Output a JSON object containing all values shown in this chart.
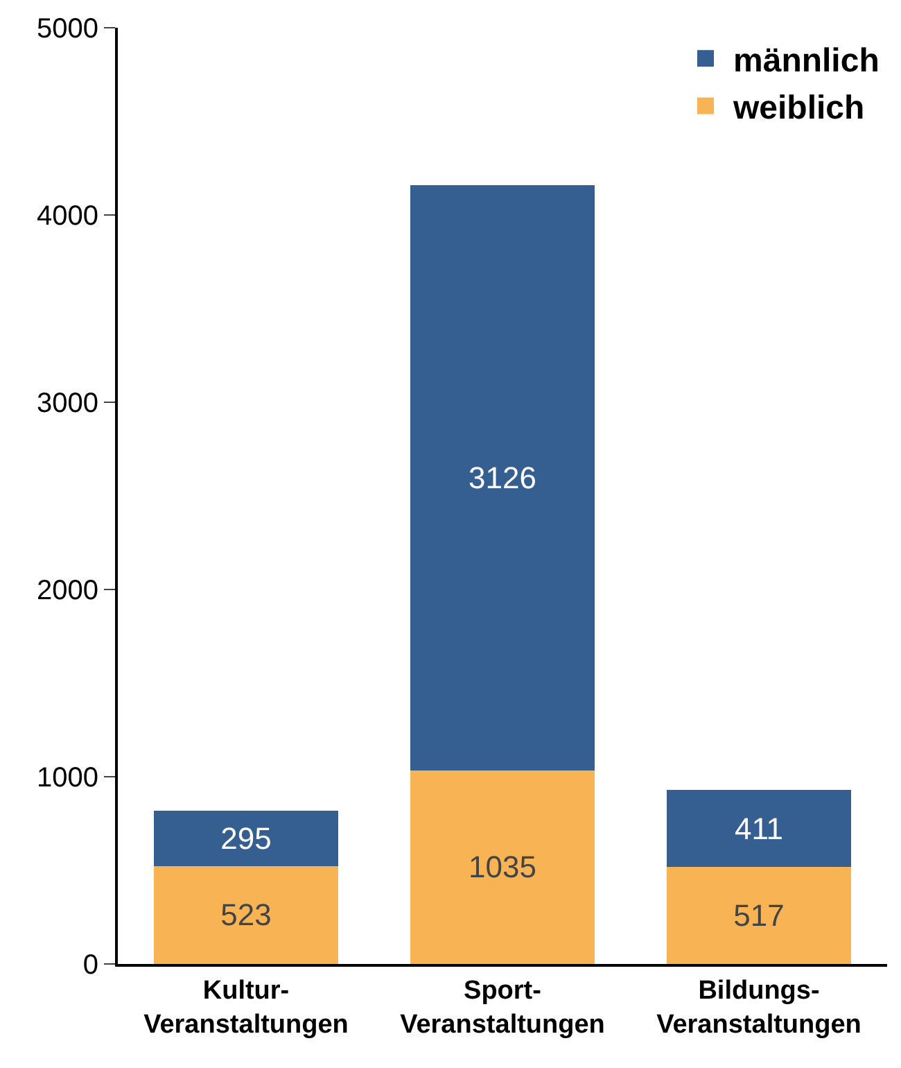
{
  "chart_data": {
    "type": "bar",
    "stacked": true,
    "categories": [
      "Kultur-\nVeranstaltungen",
      "Sport-\nVeranstaltungen",
      "Bildungs-\nVeranstaltungen"
    ],
    "series": [
      {
        "name": "weiblich",
        "color": "#f8b354",
        "values": [
          523,
          1035,
          517
        ]
      },
      {
        "name": "männlich",
        "color": "#355f91",
        "values": [
          295,
          3126,
          411
        ]
      }
    ],
    "ylim": [
      0,
      5000
    ],
    "yticks": [
      0,
      1000,
      2000,
      3000,
      4000,
      5000
    ],
    "legend": "top right",
    "data_labels": true
  }
}
